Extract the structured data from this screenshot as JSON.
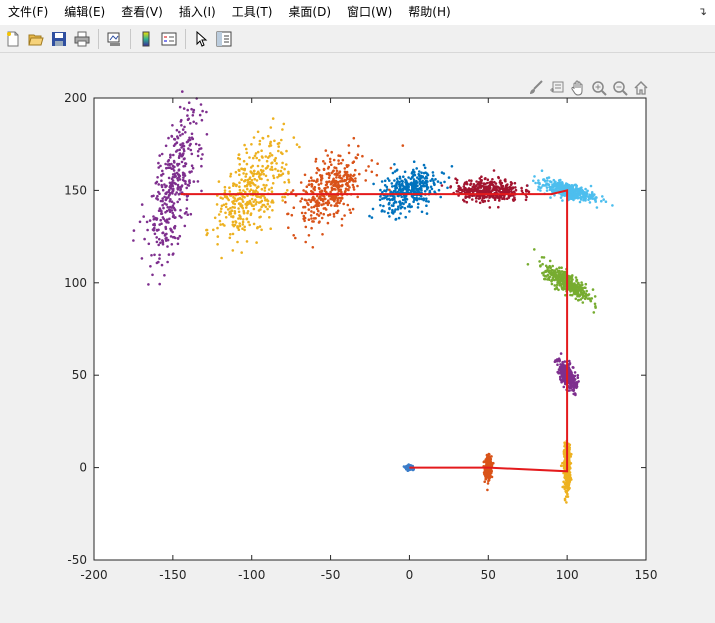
{
  "menu": {
    "items": [
      "文件(F)",
      "编辑(E)",
      "查看(V)",
      "插入(I)",
      "工具(T)",
      "桌面(D)",
      "窗口(W)",
      "帮助(H)"
    ],
    "corner_icon": "dock-arrow-icon"
  },
  "toolbar": {
    "buttons": [
      "new-figure-icon",
      "open-file-icon",
      "save-icon",
      "print-icon",
      "link-plot-icon",
      "insert-colorbar-icon",
      "insert-legend-icon",
      "edit-plot-arrow-icon",
      "property-inspector-icon"
    ]
  },
  "axes_toolbar": {
    "buttons": [
      "brush-icon",
      "data-tips-icon",
      "pan-hand-icon",
      "zoom-in-icon",
      "zoom-out-icon",
      "restore-view-home-icon"
    ]
  },
  "chart_data": {
    "type": "scatter",
    "title": "",
    "xlabel": "",
    "ylabel": "",
    "xlim": [
      -200,
      150
    ],
    "ylim": [
      -50,
      200
    ],
    "xticks": [
      -200,
      -150,
      -100,
      -50,
      0,
      50,
      100,
      150
    ],
    "yticks": [
      -50,
      0,
      50,
      100,
      150,
      200
    ],
    "grid": false,
    "path": {
      "color": "#e41a1c",
      "points": [
        [
          0,
          0
        ],
        [
          50,
          0
        ],
        [
          100,
          -2
        ],
        [
          100,
          150
        ],
        [
          90,
          148
        ],
        [
          -145,
          148
        ]
      ]
    },
    "clusters": [
      {
        "color": "#3a7dc9",
        "center": [
          0,
          0
        ],
        "spread": [
          1,
          0.5
        ],
        "angle": 0
      },
      {
        "color": "#d95319",
        "center": [
          50,
          0
        ],
        "spread": [
          1,
          3
        ],
        "angle": 0
      },
      {
        "color": "#edb120",
        "center": [
          100,
          0
        ],
        "spread": [
          1,
          6
        ],
        "angle": 0
      },
      {
        "color": "#7e2f8e",
        "center": [
          100,
          50
        ],
        "spread": [
          4,
          2
        ],
        "angle": -60
      },
      {
        "color": "#77ac30",
        "center": [
          100,
          100
        ],
        "spread": [
          8,
          2.5
        ],
        "angle": -30
      },
      {
        "color": "#4dbeee",
        "center": [
          100,
          150
        ],
        "spread": [
          9,
          2
        ],
        "angle": -12
      },
      {
        "color": "#a2142f",
        "center": [
          50,
          150
        ],
        "spread": [
          10,
          3
        ],
        "angle": 0
      },
      {
        "color": "#0072bd",
        "center": [
          0,
          150
        ],
        "spread": [
          10,
          5
        ],
        "angle": 20
      },
      {
        "color": "#d95319",
        "center": [
          -50,
          150
        ],
        "spread": [
          12,
          7
        ],
        "angle": 35
      },
      {
        "color": "#edb120",
        "center": [
          -100,
          150
        ],
        "spread": [
          16,
          8
        ],
        "angle": 55
      },
      {
        "color": "#7e2f8e",
        "center": [
          -150,
          150
        ],
        "spread": [
          22,
          6
        ],
        "angle": 75
      }
    ]
  }
}
